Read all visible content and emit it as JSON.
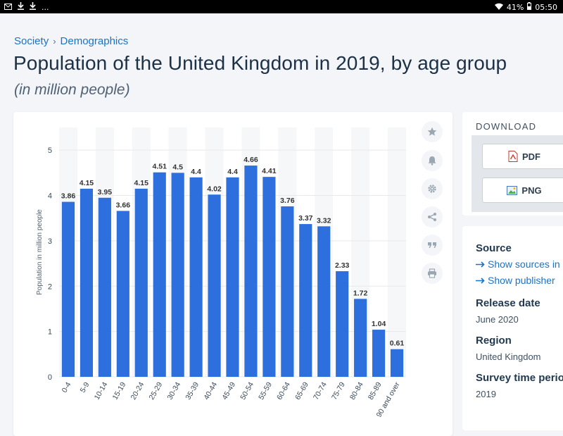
{
  "status_bar": {
    "left_icons": [
      "mail-icon",
      "download-icon",
      "download-icon",
      "more-icon"
    ],
    "more_text": "...",
    "battery": "41%",
    "time": "05:50"
  },
  "breadcrumb": {
    "items": [
      "Society",
      "Demographics"
    ],
    "separator": "›"
  },
  "page": {
    "title": "Population of the United Kingdom in 2019, by age group",
    "subtitle": "(in million people)"
  },
  "toolbar": {
    "icons": [
      "star-icon",
      "bell-icon",
      "gear-icon",
      "share-icon",
      "quote-icon",
      "print-icon"
    ]
  },
  "download": {
    "title": "DOWNLOAD",
    "pdf_label": "PDF",
    "png_label": "PNG",
    "plus": "+"
  },
  "info": {
    "source_heading": "Source",
    "show_sources": "Show sources in",
    "show_publisher": "Show publisher",
    "release_heading": "Release date",
    "release_value": "June 2020",
    "region_heading": "Region",
    "region_value": "United Kingdom",
    "survey_heading": "Survey time perio",
    "survey_value": "2019"
  },
  "colors": {
    "bar": "#2d6fdc",
    "link": "#1a73c9",
    "title": "#1c3046"
  },
  "chart_data": {
    "type": "bar",
    "ylabel": "Population in million people",
    "ylim": [
      0,
      5.5
    ],
    "yticks": [
      "0",
      "1",
      "2",
      "3",
      "4",
      "5"
    ],
    "categories": [
      "0-4",
      "5-9",
      "10-14",
      "15-19",
      "20-24",
      "25-29",
      "30-34",
      "35-39",
      "40-44",
      "45-49",
      "50-54",
      "55-59",
      "60-64",
      "65-69",
      "70-74",
      "75-79",
      "80-84",
      "85-89",
      "90 and over"
    ],
    "values": [
      3.86,
      4.15,
      3.95,
      3.66,
      4.15,
      4.51,
      4.5,
      4.4,
      4.02,
      4.4,
      4.66,
      4.41,
      3.76,
      3.37,
      3.32,
      2.33,
      1.72,
      1.04,
      0.61
    ],
    "value_labels": [
      "3.86",
      "4.15",
      "3.95",
      "3.66",
      "4.15",
      "4.51",
      "4.5",
      "4.4",
      "4.02",
      "4.4",
      "4.66",
      "4.41",
      "3.76",
      "3.37",
      "3.32",
      "2.33",
      "1.72",
      "1.04",
      "0.61"
    ]
  }
}
